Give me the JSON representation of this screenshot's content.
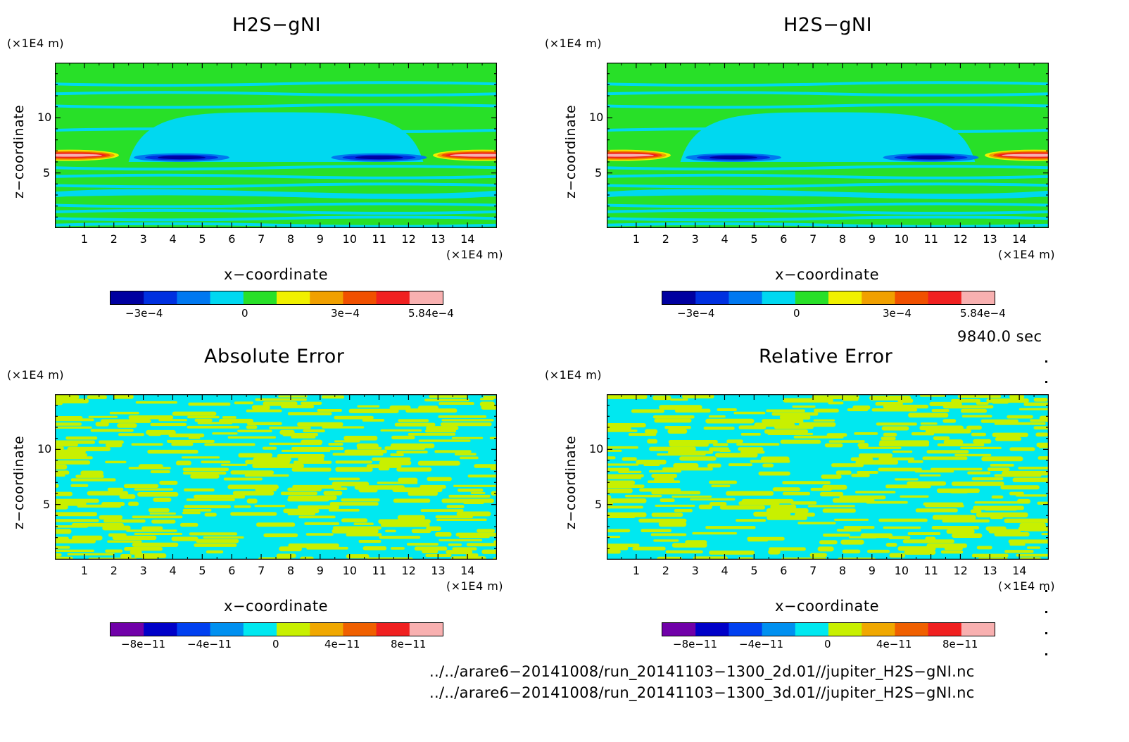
{
  "colors": {
    "field_levels": [
      "#0000a0",
      "#0030e0",
      "#0078f0",
      "#00d8f0",
      "#28e028",
      "#f0f000",
      "#f0a000",
      "#f05000",
      "#f02020",
      "#f8b0b0"
    ],
    "error_levels": [
      "#7000a8",
      "#0000c8",
      "#0040f0",
      "#0090f0",
      "#00e8f0",
      "#c8f000",
      "#f0a800",
      "#f06000",
      "#f02020",
      "#f8b0b0"
    ]
  },
  "panels": [
    {
      "title": "H2S−gNI",
      "x_unit": "(×1E4 m)",
      "z_unit": "(×1E4 m)",
      "xlabel": "x−coordinate",
      "ylabel": "z−coordinate",
      "colorbar_ticks": [
        "−3e−4",
        "0",
        "3e−4",
        "5.84e−4"
      ]
    },
    {
      "title": "H2S−gNI",
      "x_unit": "(×1E4 m)",
      "z_unit": "(×1E4 m)",
      "xlabel": "x−coordinate",
      "ylabel": "z−coordinate",
      "colorbar_ticks": [
        "−3e−4",
        "0",
        "3e−4",
        "5.84e−4"
      ]
    },
    {
      "title": "Absolute Error",
      "x_unit": "(×1E4 m)",
      "z_unit": "(×1E4 m)",
      "xlabel": "x−coordinate",
      "ylabel": "z−coordinate",
      "colorbar_ticks": [
        "−8e−11",
        "−4e−11",
        "0",
        "4e−11",
        "8e−11"
      ]
    },
    {
      "title": "Relative Error",
      "x_unit": "(×1E4 m)",
      "z_unit": "(×1E4 m)",
      "xlabel": "x−coordinate",
      "ylabel": "z−coordinate",
      "colorbar_ticks": [
        "−8e−11",
        "−4e−11",
        "0",
        "4e−11",
        "8e−11"
      ]
    }
  ],
  "time_label": "9840.0 sec",
  "file_paths": [
    "../../arare6−20141008/run_20141103−1300_2d.01//jupiter_H2S−gNI.nc",
    "../../arare6−20141008/run_20141103−1300_3d.01//jupiter_H2S−gNI.nc"
  ],
  "chart_data": [
    {
      "type": "heatmap",
      "title": "H2S−gNI",
      "xlabel": "x−coordinate",
      "ylabel": "z−coordinate",
      "x_unit": "(×1E4 m)",
      "z_unit": "(×1E4 m)",
      "xlim": [
        0,
        15
      ],
      "ylim": [
        0,
        15
      ],
      "x_ticks": [
        1,
        2,
        3,
        4,
        5,
        6,
        7,
        8,
        9,
        10,
        11,
        12,
        13,
        14
      ],
      "y_ticks": [
        5,
        10
      ],
      "colorbar": {
        "levels": 10,
        "min": -0.00045,
        "max": 0.000584,
        "ticks": [
          -0.0003,
          0,
          0.0003,
          0.000584
        ]
      },
      "features": [
        {
          "kind": "background",
          "value": 1e-05,
          "description": "layered green/cyan stripes"
        },
        {
          "kind": "dome",
          "value": -5e-05,
          "x_range": [
            2.5,
            12.5
          ],
          "z_range": [
            6,
            10.5
          ]
        },
        {
          "kind": "minimum",
          "value": -0.00045,
          "x": 4.3,
          "z": 6.4
        },
        {
          "kind": "minimum",
          "value": -0.00045,
          "x": 11.0,
          "z": 6.4
        },
        {
          "kind": "maximum",
          "value": 0.000584,
          "x": 0.5,
          "z": 6.6
        },
        {
          "kind": "maximum",
          "value": 0.000584,
          "x": 14.5,
          "z": 6.6
        }
      ]
    },
    {
      "type": "heatmap",
      "title": "H2S−gNI",
      "xlabel": "x−coordinate",
      "ylabel": "z−coordinate",
      "x_unit": "(×1E4 m)",
      "z_unit": "(×1E4 m)",
      "xlim": [
        0,
        15
      ],
      "ylim": [
        0,
        15
      ],
      "x_ticks": [
        1,
        2,
        3,
        4,
        5,
        6,
        7,
        8,
        9,
        10,
        11,
        12,
        13,
        14
      ],
      "y_ticks": [
        5,
        10
      ],
      "colorbar": {
        "levels": 10,
        "min": -0.00045,
        "max": 0.000584,
        "ticks": [
          -0.0003,
          0,
          0.0003,
          0.000584
        ]
      },
      "features": [
        {
          "kind": "background",
          "value": 1e-05,
          "description": "layered green/cyan stripes"
        },
        {
          "kind": "dome",
          "value": -5e-05,
          "x_range": [
            2.5,
            12.5
          ],
          "z_range": [
            6,
            10.5
          ]
        },
        {
          "kind": "minimum",
          "value": -0.00045,
          "x": 4.3,
          "z": 6.4
        },
        {
          "kind": "minimum",
          "value": -0.00045,
          "x": 11.0,
          "z": 6.4
        },
        {
          "kind": "maximum",
          "value": 0.000584,
          "x": 0.5,
          "z": 6.6
        },
        {
          "kind": "maximum",
          "value": 0.000584,
          "x": 14.5,
          "z": 6.6
        }
      ]
    },
    {
      "type": "heatmap",
      "title": "Absolute Error",
      "xlabel": "x−coordinate",
      "ylabel": "z−coordinate",
      "x_unit": "(×1E4 m)",
      "z_unit": "(×1E4 m)",
      "xlim": [
        0,
        15
      ],
      "ylim": [
        0,
        15
      ],
      "x_ticks": [
        1,
        2,
        3,
        4,
        5,
        6,
        7,
        8,
        9,
        10,
        11,
        12,
        13,
        14
      ],
      "y_ticks": [
        5,
        10
      ],
      "colorbar": {
        "levels": 10,
        "min": -1e-10,
        "max": 1e-10,
        "ticks": [
          -8e-11,
          -4e-11,
          0,
          4e-11,
          8e-11
        ]
      },
      "features": [
        {
          "kind": "noise",
          "values": [
            -1e-11,
            1e-11
          ],
          "description": "speckled cyan/yellow-green pattern"
        }
      ]
    },
    {
      "type": "heatmap",
      "title": "Relative Error",
      "xlabel": "x−coordinate",
      "ylabel": "z−coordinate",
      "x_unit": "(×1E4 m)",
      "z_unit": "(×1E4 m)",
      "xlim": [
        0,
        15
      ],
      "ylim": [
        0,
        15
      ],
      "x_ticks": [
        1,
        2,
        3,
        4,
        5,
        6,
        7,
        8,
        9,
        10,
        11,
        12,
        13,
        14
      ],
      "y_ticks": [
        5,
        10
      ],
      "colorbar": {
        "levels": 10,
        "min": -1e-10,
        "max": 1e-10,
        "ticks": [
          -8e-11,
          -4e-11,
          0,
          4e-11,
          8e-11
        ]
      },
      "features": [
        {
          "kind": "noise",
          "values": [
            -1e-11,
            1e-11
          ],
          "description": "speckled cyan/yellow-green pattern"
        }
      ]
    }
  ]
}
